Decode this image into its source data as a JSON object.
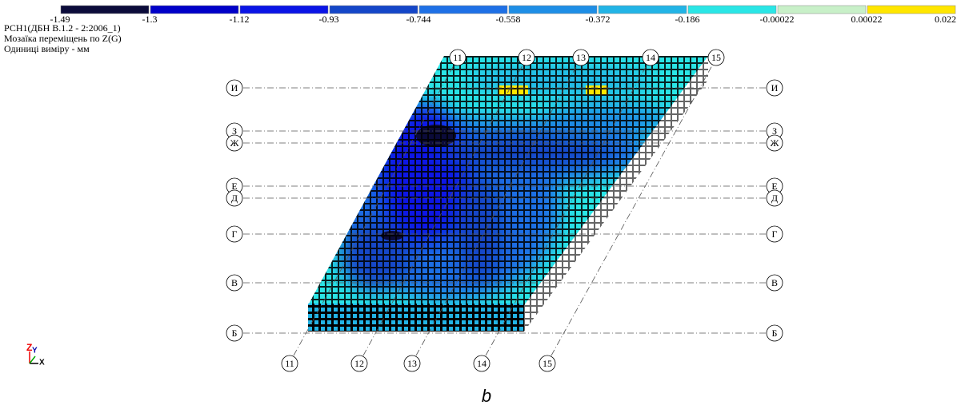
{
  "legend": {
    "colors": [
      "#0b0b3a",
      "#0000c8",
      "#0a14e6",
      "#1446c8",
      "#1e70e6",
      "#1e8ee6",
      "#22b4e6",
      "#2ae6e6",
      "#c8f0c8",
      "#ffe600"
    ],
    "labels": [
      "-1.49",
      "-1.3",
      "-1.12",
      "-0.93",
      "-0.744",
      "-0.558",
      "-0.372",
      "-0.186",
      "-0.00022",
      "0.00022",
      "0.022"
    ]
  },
  "header": {
    "lines": [
      "РСН1(ДБН В.1.2 - 2:2006_1)",
      "Мозаїка переміщень по Z(G)",
      "Одиниці виміру - мм"
    ]
  },
  "rows": [
    "И",
    "З",
    "Ж",
    "Е",
    "Д",
    "Г",
    "В",
    "Б"
  ],
  "columns": [
    "11",
    "12",
    "13",
    "14",
    "15"
  ],
  "axes": {
    "z": "Z",
    "y": "Y",
    "x": "X"
  },
  "caption": "b"
}
